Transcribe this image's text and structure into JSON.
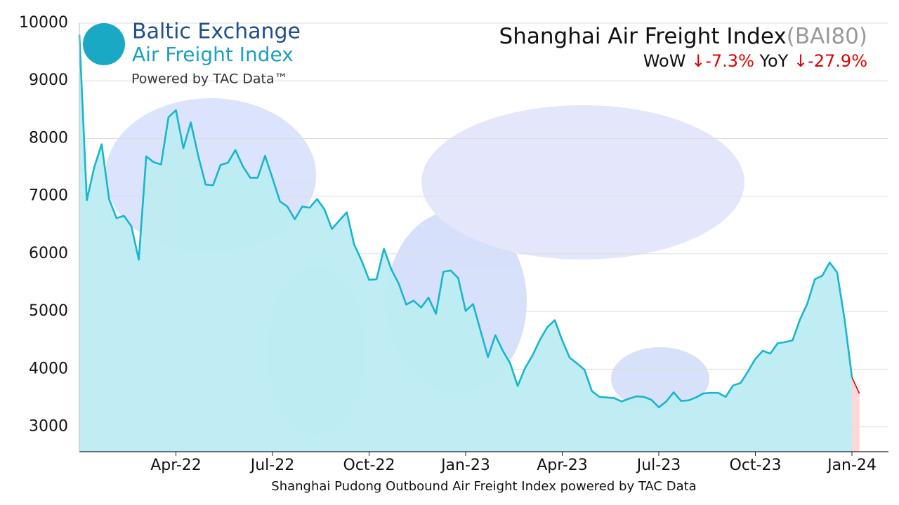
{
  "chart_data": {
    "type": "area",
    "logo": {
      "title": "Baltic Exchange",
      "subtitle": "Air Freight Index",
      "tagline": "Powered by TAC Data™"
    },
    "title": "Shanghai Air Freight Index",
    "title_suffix": "(BAI80)",
    "stats": [
      {
        "label": "WoW",
        "change": "↓-7.3%"
      },
      {
        "label": "YoY",
        "change": "↓-27.9%"
      }
    ],
    "x_label": "Shanghai Pudong Outbound Air Freight Index powered by TAC Data",
    "categories": [
      null,
      null,
      null,
      null,
      null,
      null,
      null,
      null,
      null,
      null,
      null,
      null,
      null,
      "Apr-22",
      null,
      null,
      null,
      null,
      null,
      null,
      null,
      null,
      null,
      null,
      null,
      null,
      "Jul-22",
      null,
      null,
      null,
      null,
      null,
      null,
      null,
      null,
      null,
      null,
      null,
      null,
      "Oct-22",
      null,
      null,
      null,
      null,
      null,
      null,
      null,
      null,
      null,
      null,
      null,
      null,
      "Jan-23",
      null,
      null,
      null,
      null,
      null,
      null,
      null,
      null,
      null,
      null,
      null,
      null,
      "Apr-23",
      null,
      null,
      null,
      null,
      null,
      null,
      null,
      null,
      null,
      null,
      null,
      null,
      "Jul-23",
      null,
      null,
      null,
      null,
      null,
      null,
      null,
      null,
      null,
      null,
      null,
      null,
      "Oct-23",
      null,
      null,
      null,
      null,
      null,
      null,
      null,
      null,
      null,
      null,
      null,
      null,
      "Jan-24",
      null
    ],
    "values": [
      9800,
      6930,
      7500,
      7900,
      6950,
      6620,
      6660,
      6480,
      5900,
      7690,
      7590,
      7550,
      8370,
      8490,
      7830,
      8280,
      7700,
      7200,
      7190,
      7540,
      7580,
      7800,
      7520,
      7320,
      7320,
      7700,
      7310,
      6910,
      6820,
      6600,
      6820,
      6800,
      6950,
      6770,
      6430,
      6580,
      6720,
      6160,
      5880,
      5550,
      5560,
      6090,
      5730,
      5480,
      5120,
      5190,
      5070,
      5240,
      4960,
      5690,
      5710,
      5580,
      5010,
      5130,
      4670,
      4210,
      4590,
      4320,
      4100,
      3710,
      4020,
      4240,
      4510,
      4730,
      4850,
      4500,
      4200,
      4100,
      3990,
      3620,
      3520,
      3510,
      3500,
      3440,
      3490,
      3530,
      3520,
      3470,
      3340,
      3440,
      3600,
      3450,
      3460,
      3510,
      3580,
      3590,
      3590,
      3520,
      3720,
      3760,
      3960,
      4180,
      4320,
      4270,
      4450,
      4470,
      4500,
      4860,
      5140,
      5560,
      5620,
      5850,
      5680,
      4870,
      3860,
      3580
    ],
    "color": "#17b6cc",
    "fill_color": "#bdecf2",
    "last_color": "#e00000",
    "last_fill_color": "#ffd6da",
    "ylim": [
      2570,
      10000
    ],
    "yticks": [
      3000,
      4000,
      5000,
      6000,
      7000,
      8000,
      9000,
      10000
    ],
    "grid": true
  }
}
